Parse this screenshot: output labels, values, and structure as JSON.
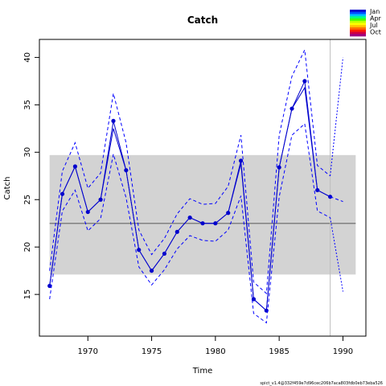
{
  "chart_data": {
    "type": "line",
    "title": "Catch",
    "xlabel": "Time",
    "ylabel": "Catch",
    "xlim": [
      1966.2,
      1991.8
    ],
    "ylim": [
      10.6,
      41.9
    ],
    "x_ticks": [
      1970,
      1975,
      1980,
      1985,
      1990
    ],
    "y_ticks": [
      15,
      20,
      25,
      30,
      35,
      40
    ],
    "grid": false,
    "reference_band": {
      "y_low": 17.1,
      "y_high": 29.7,
      "x_start": 1967,
      "x_end": 1991,
      "color": "#d3d3d3"
    },
    "reference_line": {
      "y": 22.5,
      "color": "#808080"
    },
    "vertical_line": {
      "x": 1989,
      "color": "#bebebe"
    },
    "series": [
      {
        "style": "line-points",
        "color": "#0000cd",
        "x": [
          1967,
          1968,
          1969,
          1970,
          1971,
          1972,
          1973,
          1974,
          1975,
          1976,
          1977,
          1978,
          1979,
          1980,
          1981,
          1982,
          1983,
          1984,
          1985,
          1986,
          1987,
          1988,
          1989
        ],
        "values": [
          15.9,
          25.6,
          28.5,
          23.7,
          25.0,
          33.3,
          28.1,
          19.7,
          17.5,
          19.3,
          21.6,
          23.1,
          22.5,
          22.5,
          23.6,
          29.1,
          14.5,
          13.3,
          28.4,
          34.6,
          37.5,
          26.0,
          25.3
        ]
      },
      {
        "style": "line",
        "color": "#0000cd",
        "x": [
          1967,
          1968,
          1969,
          1970,
          1971,
          1972,
          1973,
          1974,
          1975,
          1976,
          1977,
          1978,
          1979,
          1980,
          1981,
          1982,
          1983,
          1984,
          1985,
          1986,
          1987,
          1988,
          1989
        ],
        "values": [
          15.9,
          25.6,
          28.5,
          23.7,
          25.0,
          32.5,
          28.1,
          19.7,
          17.5,
          19.3,
          21.6,
          23.1,
          22.5,
          22.5,
          23.6,
          28.8,
          14.5,
          13.3,
          28.4,
          34.6,
          36.8,
          26.0,
          25.3
        ]
      },
      {
        "style": "dashed",
        "color": "#0000ff",
        "x": [
          1967,
          1968,
          1969,
          1970,
          1971,
          1972,
          1973,
          1974,
          1975,
          1976,
          1977,
          1978,
          1979,
          1980,
          1981,
          1982,
          1983,
          1984,
          1985,
          1986,
          1987,
          1988,
          1989
        ],
        "values": [
          17.5,
          28.0,
          31.0,
          26.2,
          27.8,
          36.2,
          31.0,
          21.8,
          19.2,
          20.9,
          23.5,
          25.1,
          24.5,
          24.6,
          26.4,
          31.8,
          16.3,
          15.1,
          31.8,
          38.0,
          40.8,
          28.6,
          27.5
        ]
      },
      {
        "style": "dashed",
        "color": "#0000ff",
        "x": [
          1967,
          1968,
          1969,
          1970,
          1971,
          1972,
          1973,
          1974,
          1975,
          1976,
          1977,
          1978,
          1979,
          1980,
          1981,
          1982,
          1983,
          1984,
          1985,
          1986,
          1987,
          1988,
          1989
        ],
        "values": [
          14.5,
          23.8,
          26.0,
          21.7,
          23.0,
          29.8,
          25.2,
          17.9,
          16.0,
          17.6,
          19.8,
          21.2,
          20.7,
          20.6,
          21.8,
          25.4,
          13.0,
          12.0,
          25.3,
          31.8,
          33.0,
          23.8,
          23.1
        ]
      },
      {
        "style": "dashed",
        "color": "#0000ff",
        "x": [
          1989,
          1990
        ],
        "values": [
          25.3,
          24.8
        ]
      },
      {
        "style": "dotted",
        "color": "#0000ff",
        "x": [
          1989,
          1990
        ],
        "values": [
          27.5,
          40.0
        ]
      },
      {
        "style": "dotted",
        "color": "#0000ff",
        "x": [
          1989,
          1990
        ],
        "values": [
          23.1,
          15.3
        ]
      }
    ]
  },
  "legend": {
    "labels": [
      "Jan",
      "Apr",
      "Jul",
      "Oct"
    ],
    "colors": [
      "#0000cd",
      "#0050ff",
      "#00c0ff",
      "#00ff80",
      "#40ff00",
      "#c0ff00",
      "#ffff00",
      "#ffc000",
      "#ff7000",
      "#ff2000",
      "#d00040",
      "#a00080"
    ]
  },
  "footnote": "spict_v1.4@332f459e7d96cec206b7aca803fdb0eb73eba526"
}
